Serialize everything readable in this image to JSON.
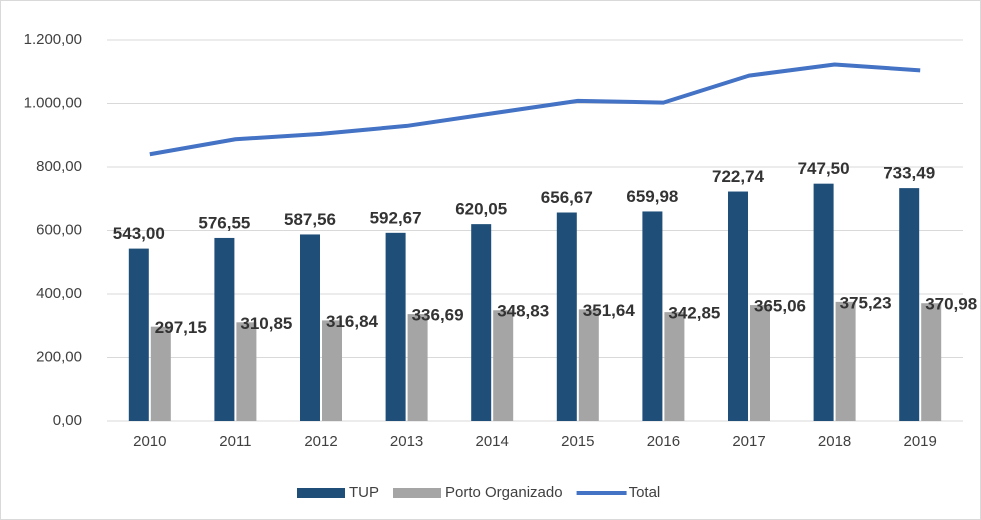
{
  "chart_data": {
    "type": "bar",
    "categories": [
      "2010",
      "2011",
      "2012",
      "2013",
      "2014",
      "2015",
      "2016",
      "2017",
      "2018",
      "2019"
    ],
    "series": [
      {
        "name": "TUP",
        "color": "#1f4e79",
        "values": [
          543.0,
          576.55,
          587.56,
          592.67,
          620.05,
          656.67,
          659.98,
          722.74,
          747.5,
          733.49
        ],
        "value_labels": [
          "543,00",
          "576,55",
          "587,56",
          "592,67",
          "620,05",
          "656,67",
          "659,98",
          "722,74",
          "747,50",
          "733,49"
        ]
      },
      {
        "name": "Porto Organizado",
        "color": "#a5a5a5",
        "values": [
          297.15,
          310.85,
          316.84,
          336.69,
          348.83,
          351.64,
          342.85,
          365.06,
          375.23,
          370.98
        ],
        "value_labels": [
          "297,15",
          "310,85",
          "316,84",
          "336,69",
          "348,83",
          "351,64",
          "342,85",
          "365,06",
          "375,23",
          "370,98"
        ]
      },
      {
        "name": "Total",
        "type": "line",
        "color": "#4472c4",
        "values": [
          840.15,
          887.4,
          904.4,
          929.36,
          968.88,
          1008.31,
          1002.83,
          1087.8,
          1122.73,
          1104.47
        ]
      }
    ],
    "ylim": [
      0,
      1200
    ],
    "yticks": [
      {
        "value": 0,
        "label": "0,00"
      },
      {
        "value": 200,
        "label": "200,00"
      },
      {
        "value": 400,
        "label": "400,00"
      },
      {
        "value": 600,
        "label": "600,00"
      },
      {
        "value": 800,
        "label": "800,00"
      },
      {
        "value": 1000,
        "label": "1.000,00"
      },
      {
        "value": 1200,
        "label": "1.200,00"
      }
    ],
    "grid": true,
    "legend": "bottom"
  }
}
